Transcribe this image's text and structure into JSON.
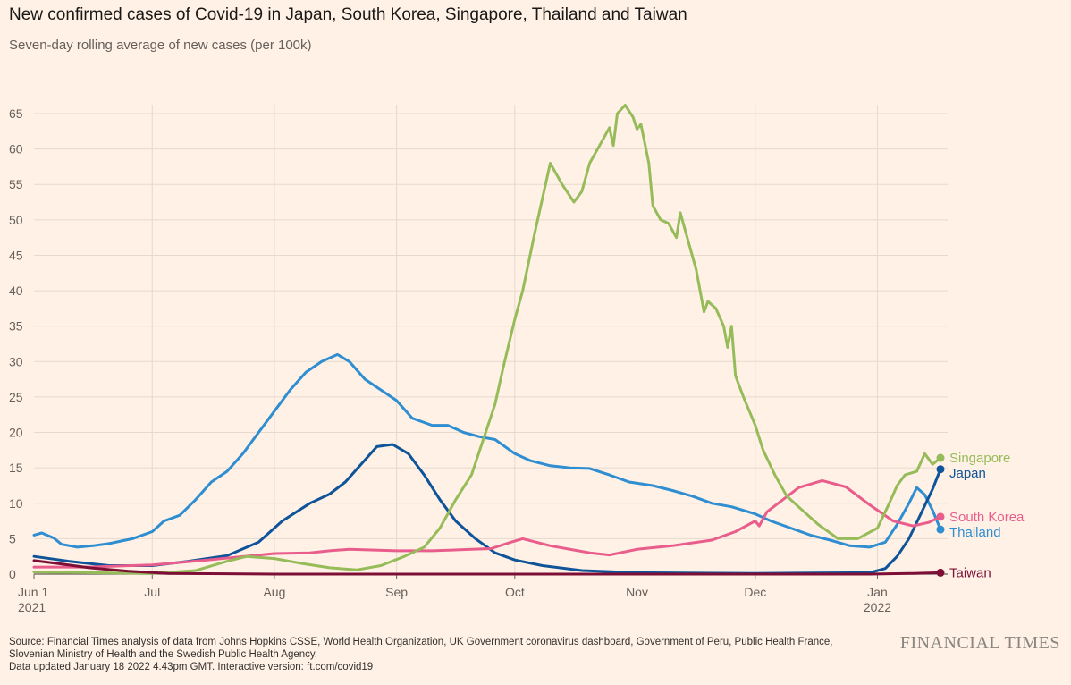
{
  "title": "New confirmed cases of Covid-19 in Japan, South Korea, Singapore, Thailand and Taiwan",
  "subtitle": "Seven-day rolling average of new cases (per 100k)",
  "footer": {
    "source_line1": "Source: Financial Times analysis of data from Johns Hopkins CSSE, World Health Organization, UK Government coronavirus dashboard, Government of Peru, Public Health France,",
    "source_line2": "Slovenian Ministry of Health and the Swedish Public Health Agency.",
    "updated": "Data updated January 18 2022 4.43pm GMT. Interactive version: ft.com/covid19"
  },
  "brand": "FINANCIAL TIMES",
  "chart_data": {
    "type": "line",
    "title": "New confirmed cases of Covid-19 in Japan, South Korea, Singapore, Thailand and Taiwan",
    "subtitle": "Seven-day rolling average of new cases (per 100k)",
    "xlabel": "",
    "ylabel": "",
    "ylim": [
      0,
      65
    ],
    "yticks": [
      0,
      5,
      10,
      15,
      20,
      25,
      30,
      35,
      40,
      45,
      50,
      55,
      60,
      65
    ],
    "xlim": [
      "2021-06-01",
      "2022-01-17"
    ],
    "xticks": [
      {
        "date": "2021-06-01",
        "label": "Jun 1",
        "sublabel": "2021"
      },
      {
        "date": "2021-07-01",
        "label": "Jul",
        "sublabel": ""
      },
      {
        "date": "2021-08-01",
        "label": "Aug",
        "sublabel": ""
      },
      {
        "date": "2021-09-01",
        "label": "Sep",
        "sublabel": ""
      },
      {
        "date": "2021-10-01",
        "label": "Oct",
        "sublabel": ""
      },
      {
        "date": "2021-11-01",
        "label": "Nov",
        "sublabel": ""
      },
      {
        "date": "2021-12-01",
        "label": "Dec",
        "sublabel": ""
      },
      {
        "date": "2022-01-01",
        "label": "Jan",
        "sublabel": "2022"
      }
    ],
    "grid": true,
    "legend": "direct labels at line ends (right)",
    "series": [
      {
        "name": "Thailand",
        "color": "#2e8ed1",
        "points": [
          [
            "2021-06-01",
            5.5
          ],
          [
            "2021-06-03",
            5.8
          ],
          [
            "2021-06-06",
            5.1
          ],
          [
            "2021-06-08",
            4.2
          ],
          [
            "2021-06-12",
            3.8
          ],
          [
            "2021-06-16",
            4.0
          ],
          [
            "2021-06-20",
            4.3
          ],
          [
            "2021-06-26",
            5.0
          ],
          [
            "2021-07-01",
            6.0
          ],
          [
            "2021-07-04",
            7.5
          ],
          [
            "2021-07-08",
            8.3
          ],
          [
            "2021-07-12",
            10.5
          ],
          [
            "2021-07-16",
            13.0
          ],
          [
            "2021-07-20",
            14.5
          ],
          [
            "2021-07-24",
            17.0
          ],
          [
            "2021-07-28",
            20.0
          ],
          [
            "2021-08-01",
            23.0
          ],
          [
            "2021-08-05",
            26.0
          ],
          [
            "2021-08-09",
            28.5
          ],
          [
            "2021-08-13",
            30.0
          ],
          [
            "2021-08-17",
            31.0
          ],
          [
            "2021-08-20",
            30.0
          ],
          [
            "2021-08-24",
            27.5
          ],
          [
            "2021-08-28",
            26.0
          ],
          [
            "2021-09-01",
            24.5
          ],
          [
            "2021-09-05",
            22.0
          ],
          [
            "2021-09-10",
            21.0
          ],
          [
            "2021-09-14",
            21.0
          ],
          [
            "2021-09-18",
            20.0
          ],
          [
            "2021-09-22",
            19.4
          ],
          [
            "2021-09-26",
            19.0
          ],
          [
            "2021-10-01",
            17.0
          ],
          [
            "2021-10-05",
            16.0
          ],
          [
            "2021-10-10",
            15.3
          ],
          [
            "2021-10-15",
            15.0
          ],
          [
            "2021-10-20",
            14.9
          ],
          [
            "2021-10-25",
            14.0
          ],
          [
            "2021-10-30",
            13.0
          ],
          [
            "2021-11-05",
            12.5
          ],
          [
            "2021-11-10",
            11.8
          ],
          [
            "2021-11-15",
            11.0
          ],
          [
            "2021-11-20",
            10.0
          ],
          [
            "2021-11-25",
            9.5
          ],
          [
            "2021-12-01",
            8.5
          ],
          [
            "2021-12-05",
            7.5
          ],
          [
            "2021-12-10",
            6.5
          ],
          [
            "2021-12-15",
            5.5
          ],
          [
            "2021-12-20",
            4.8
          ],
          [
            "2021-12-25",
            4.0
          ],
          [
            "2021-12-30",
            3.8
          ],
          [
            "2022-01-03",
            4.5
          ],
          [
            "2022-01-06",
            7.0
          ],
          [
            "2022-01-09",
            10.0
          ],
          [
            "2022-01-11",
            12.2
          ],
          [
            "2022-01-13",
            11.2
          ],
          [
            "2022-01-15",
            9.0
          ],
          [
            "2022-01-17",
            6.3
          ]
        ]
      },
      {
        "name": "Japan",
        "color": "#0f5499",
        "points": [
          [
            "2021-06-01",
            2.5
          ],
          [
            "2021-06-10",
            1.8
          ],
          [
            "2021-06-20",
            1.2
          ],
          [
            "2021-07-01",
            1.2
          ],
          [
            "2021-07-10",
            1.8
          ],
          [
            "2021-07-20",
            2.6
          ],
          [
            "2021-07-28",
            4.5
          ],
          [
            "2021-08-03",
            7.5
          ],
          [
            "2021-08-10",
            10.0
          ],
          [
            "2021-08-15",
            11.3
          ],
          [
            "2021-08-19",
            13.0
          ],
          [
            "2021-08-23",
            15.5
          ],
          [
            "2021-08-27",
            18.0
          ],
          [
            "2021-08-31",
            18.3
          ],
          [
            "2021-09-04",
            17.0
          ],
          [
            "2021-09-08",
            14.0
          ],
          [
            "2021-09-12",
            10.5
          ],
          [
            "2021-09-16",
            7.5
          ],
          [
            "2021-09-21",
            5.0
          ],
          [
            "2021-09-26",
            3.0
          ],
          [
            "2021-10-01",
            2.0
          ],
          [
            "2021-10-08",
            1.2
          ],
          [
            "2021-10-18",
            0.5
          ],
          [
            "2021-11-01",
            0.2
          ],
          [
            "2021-12-01",
            0.1
          ],
          [
            "2021-12-30",
            0.2
          ],
          [
            "2022-01-03",
            0.8
          ],
          [
            "2022-01-06",
            2.5
          ],
          [
            "2022-01-09",
            5.0
          ],
          [
            "2022-01-12",
            8.5
          ],
          [
            "2022-01-15",
            12.0
          ],
          [
            "2022-01-17",
            14.8
          ]
        ]
      },
      {
        "name": "South Korea",
        "color": "#e95d8c",
        "points": [
          [
            "2021-06-01",
            1.0
          ],
          [
            "2021-06-15",
            1.0
          ],
          [
            "2021-07-01",
            1.3
          ],
          [
            "2021-07-15",
            2.0
          ],
          [
            "2021-08-01",
            2.9
          ],
          [
            "2021-08-10",
            3.0
          ],
          [
            "2021-08-15",
            3.3
          ],
          [
            "2021-08-20",
            3.5
          ],
          [
            "2021-09-01",
            3.3
          ],
          [
            "2021-09-10",
            3.3
          ],
          [
            "2021-09-20",
            3.5
          ],
          [
            "2021-09-25",
            3.6
          ],
          [
            "2021-09-30",
            4.5
          ],
          [
            "2021-10-03",
            5.0
          ],
          [
            "2021-10-10",
            4.0
          ],
          [
            "2021-10-20",
            3.0
          ],
          [
            "2021-10-25",
            2.7
          ],
          [
            "2021-11-01",
            3.5
          ],
          [
            "2021-11-10",
            4.0
          ],
          [
            "2021-11-20",
            4.8
          ],
          [
            "2021-11-26",
            6.0
          ],
          [
            "2021-12-01",
            7.5
          ],
          [
            "2021-12-02",
            6.8
          ],
          [
            "2021-12-04",
            8.8
          ],
          [
            "2021-12-08",
            10.5
          ],
          [
            "2021-12-12",
            12.2
          ],
          [
            "2021-12-18",
            13.2
          ],
          [
            "2021-12-24",
            12.3
          ],
          [
            "2021-12-30",
            9.8
          ],
          [
            "2022-01-05",
            7.5
          ],
          [
            "2022-01-10",
            6.8
          ],
          [
            "2022-01-14",
            7.3
          ],
          [
            "2022-01-17",
            8.1
          ]
        ]
      },
      {
        "name": "Singapore",
        "color": "#96bc5a",
        "points": [
          [
            "2021-06-01",
            0.3
          ],
          [
            "2021-06-15",
            0.2
          ],
          [
            "2021-07-01",
            0.1
          ],
          [
            "2021-07-12",
            0.5
          ],
          [
            "2021-07-20",
            1.8
          ],
          [
            "2021-07-25",
            2.5
          ],
          [
            "2021-08-01",
            2.2
          ],
          [
            "2021-08-08",
            1.5
          ],
          [
            "2021-08-15",
            0.9
          ],
          [
            "2021-08-22",
            0.6
          ],
          [
            "2021-08-28",
            1.2
          ],
          [
            "2021-09-03",
            2.5
          ],
          [
            "2021-09-08",
            3.8
          ],
          [
            "2021-09-12",
            6.5
          ],
          [
            "2021-09-16",
            10.5
          ],
          [
            "2021-09-20",
            14.0
          ],
          [
            "2021-09-23",
            19.0
          ],
          [
            "2021-09-26",
            24.0
          ],
          [
            "2021-09-28",
            29.0
          ],
          [
            "2021-10-01",
            36.0
          ],
          [
            "2021-10-03",
            40.0
          ],
          [
            "2021-10-06",
            48.0
          ],
          [
            "2021-10-08",
            53.0
          ],
          [
            "2021-10-10",
            58.0
          ],
          [
            "2021-10-13",
            55.0
          ],
          [
            "2021-10-16",
            52.5
          ],
          [
            "2021-10-18",
            54.0
          ],
          [
            "2021-10-20",
            58.0
          ],
          [
            "2021-10-23",
            61.0
          ],
          [
            "2021-10-25",
            63.0
          ],
          [
            "2021-10-26",
            60.5
          ],
          [
            "2021-10-27",
            65.0
          ],
          [
            "2021-10-29",
            66.2
          ],
          [
            "2021-10-31",
            64.5
          ],
          [
            "2021-11-01",
            62.8
          ],
          [
            "2021-11-02",
            63.5
          ],
          [
            "2021-11-04",
            58.0
          ],
          [
            "2021-11-05",
            52.0
          ],
          [
            "2021-11-07",
            50.0
          ],
          [
            "2021-11-09",
            49.5
          ],
          [
            "2021-11-11",
            47.5
          ],
          [
            "2021-11-12",
            51.0
          ],
          [
            "2021-11-14",
            47.0
          ],
          [
            "2021-11-16",
            43.0
          ],
          [
            "2021-11-18",
            37.0
          ],
          [
            "2021-11-19",
            38.5
          ],
          [
            "2021-11-21",
            37.5
          ],
          [
            "2021-11-23",
            35.0
          ],
          [
            "2021-11-24",
            32.0
          ],
          [
            "2021-11-25",
            35.0
          ],
          [
            "2021-11-26",
            28.0
          ],
          [
            "2021-11-28",
            25.0
          ],
          [
            "2021-12-01",
            21.0
          ],
          [
            "2021-12-03",
            17.5
          ],
          [
            "2021-12-06",
            14.0
          ],
          [
            "2021-12-09",
            11.0
          ],
          [
            "2021-12-13",
            9.0
          ],
          [
            "2021-12-17",
            7.0
          ],
          [
            "2021-12-22",
            5.0
          ],
          [
            "2021-12-27",
            5.0
          ],
          [
            "2022-01-01",
            6.5
          ],
          [
            "2022-01-04",
            10.0
          ],
          [
            "2022-01-06",
            12.5
          ],
          [
            "2022-01-08",
            14.0
          ],
          [
            "2022-01-11",
            14.5
          ],
          [
            "2022-01-13",
            17.0
          ],
          [
            "2022-01-15",
            15.5
          ],
          [
            "2022-01-17",
            16.4
          ]
        ]
      },
      {
        "name": "Taiwan",
        "color": "#7d0e35",
        "points": [
          [
            "2021-06-01",
            1.9
          ],
          [
            "2021-06-07",
            1.5
          ],
          [
            "2021-06-15",
            0.9
          ],
          [
            "2021-06-25",
            0.4
          ],
          [
            "2021-07-05",
            0.1
          ],
          [
            "2021-08-01",
            0.0
          ],
          [
            "2021-12-30",
            0.0
          ],
          [
            "2022-01-10",
            0.1
          ],
          [
            "2022-01-17",
            0.2
          ]
        ]
      }
    ]
  }
}
